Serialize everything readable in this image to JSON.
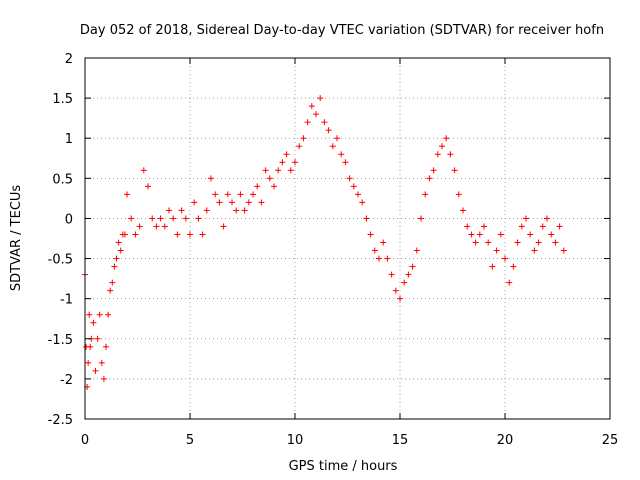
{
  "chart_data": {
    "type": "scatter",
    "title": "Day 052 of 2018, Sidereal Day-to-day VTEC variation (SDTVAR) for receiver hofn",
    "xlabel": "GPS time / hours",
    "ylabel": "SDTVAR / TECUs",
    "xlim": [
      0,
      25
    ],
    "ylim": [
      -2.5,
      2
    ],
    "xticks": [
      0,
      5,
      10,
      15,
      20,
      25
    ],
    "yticks": [
      -2.5,
      -2,
      -1.5,
      -1,
      -0.5,
      0,
      0.5,
      1,
      1.5,
      2
    ],
    "xtick_labels": [
      "0",
      "5",
      "10",
      "15",
      "20",
      "25"
    ],
    "ytick_labels": [
      "-2.5",
      "-2",
      "-1.5",
      "-1",
      "-0.5",
      "0",
      "0.5",
      "1",
      "1.5",
      "2"
    ],
    "grid": true,
    "marker": "+",
    "color": "#ff0000",
    "series": [
      {
        "name": "SDTVAR",
        "x": [
          0.0,
          0.05,
          0.1,
          0.15,
          0.2,
          0.25,
          0.3,
          0.4,
          0.5,
          0.6,
          0.7,
          0.8,
          0.9,
          1.0,
          1.1,
          1.2,
          1.3,
          1.4,
          1.5,
          1.6,
          1.7,
          1.8,
          1.9,
          2.0,
          2.2,
          2.4,
          2.6,
          2.8,
          3.0,
          3.2,
          3.4,
          3.6,
          3.8,
          4.0,
          4.2,
          4.4,
          4.6,
          4.8,
          5.0,
          5.2,
          5.4,
          5.6,
          5.8,
          6.0,
          6.2,
          6.4,
          6.6,
          6.8,
          7.0,
          7.2,
          7.4,
          7.6,
          7.8,
          8.0,
          8.2,
          8.4,
          8.6,
          8.8,
          9.0,
          9.2,
          9.4,
          9.6,
          9.8,
          10.0,
          10.2,
          10.4,
          10.6,
          10.8,
          11.0,
          11.2,
          11.4,
          11.6,
          11.8,
          12.0,
          12.2,
          12.4,
          12.6,
          12.8,
          13.0,
          13.2,
          13.4,
          13.6,
          13.8,
          14.0,
          14.2,
          14.4,
          14.6,
          14.8,
          15.0,
          15.2,
          15.4,
          15.6,
          15.8,
          16.0,
          16.2,
          16.4,
          16.6,
          16.8,
          17.0,
          17.2,
          17.4,
          17.6,
          17.8,
          18.0,
          18.2,
          18.4,
          18.6,
          18.8,
          19.0,
          19.2,
          19.4,
          19.6,
          19.8,
          20.0,
          20.2,
          20.4,
          20.6,
          20.8,
          21.0,
          21.2,
          21.4,
          21.6,
          21.8,
          22.0,
          22.2,
          22.4,
          22.6,
          22.8
        ],
        "y": [
          -0.7,
          -1.6,
          -2.1,
          -1.8,
          -1.2,
          -1.6,
          -1.5,
          -1.3,
          -1.9,
          -1.5,
          -1.2,
          -1.8,
          -2.0,
          -1.6,
          -1.2,
          -0.9,
          -0.8,
          -0.6,
          -0.5,
          -0.3,
          -0.4,
          -0.2,
          -0.2,
          0.3,
          0.0,
          -0.2,
          -0.1,
          0.6,
          0.4,
          0.0,
          -0.1,
          0.0,
          -0.1,
          0.1,
          0.0,
          -0.2,
          0.1,
          0.0,
          -0.2,
          0.2,
          0.0,
          -0.2,
          0.1,
          0.5,
          0.3,
          0.2,
          -0.1,
          0.3,
          0.2,
          0.1,
          0.3,
          0.1,
          0.2,
          0.3,
          0.4,
          0.2,
          0.6,
          0.5,
          0.4,
          0.6,
          0.7,
          0.8,
          0.6,
          0.7,
          0.9,
          1.0,
          1.2,
          1.4,
          1.3,
          1.5,
          1.2,
          1.1,
          0.9,
          1.0,
          0.8,
          0.7,
          0.5,
          0.4,
          0.3,
          0.2,
          0.0,
          -0.2,
          -0.4,
          -0.5,
          -0.3,
          -0.5,
          -0.7,
          -0.9,
          -1.0,
          -0.8,
          -0.7,
          -0.6,
          -0.4,
          0.0,
          0.3,
          0.5,
          0.6,
          0.8,
          0.9,
          1.0,
          0.8,
          0.6,
          0.3,
          0.1,
          -0.1,
          -0.2,
          -0.3,
          -0.2,
          -0.1,
          -0.3,
          -0.6,
          -0.4,
          -0.2,
          -0.5,
          -0.8,
          -0.6,
          -0.3,
          -0.1,
          0.0,
          -0.2,
          -0.4,
          -0.3,
          -0.1,
          0.0,
          -0.2,
          -0.3,
          -0.1,
          -0.4
        ]
      }
    ]
  }
}
